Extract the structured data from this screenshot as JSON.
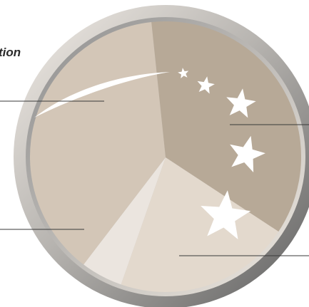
{
  "chart_data": {
    "type": "pie",
    "title": "tion",
    "slices": [
      {
        "label": "",
        "value": 0.36,
        "color": "#b7a997"
      },
      {
        "label": "",
        "value": 0.21,
        "color": "#e3d9cd"
      },
      {
        "label": "",
        "value": 0.05,
        "color": "#ebe5df"
      },
      {
        "label": "",
        "value": 0.38,
        "color": "#d3c6b7"
      }
    ],
    "start_angle_deg": -6,
    "rim_color": "#8f8f8f",
    "decorations": {
      "stars": 6,
      "star_color": "#ffffff",
      "comet_color": "#ffffff"
    },
    "leader_line_color": "#3a3a3a"
  }
}
